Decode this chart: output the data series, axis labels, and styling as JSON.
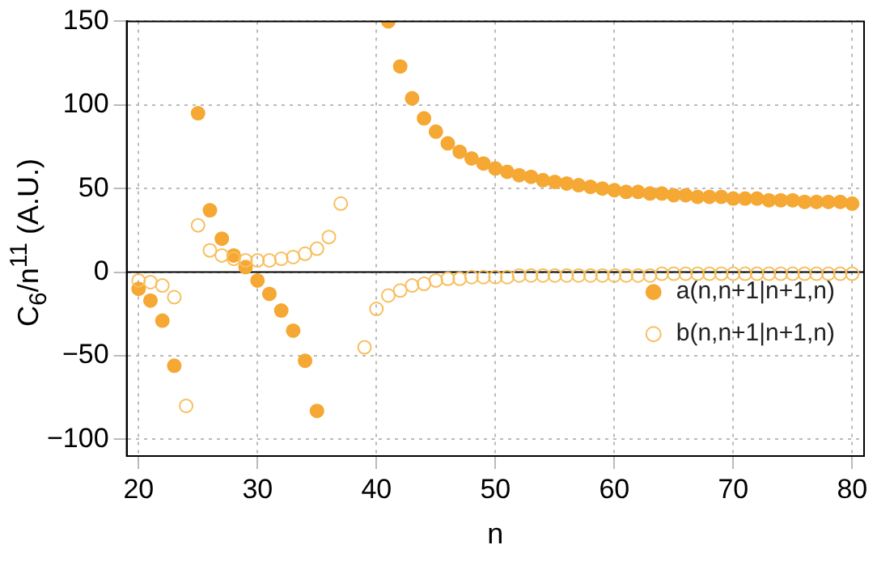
{
  "chart_data": {
    "type": "scatter",
    "xlabel": "n",
    "ylabel": "C$_{6}$/n$^{11}$ (A.U.)",
    "x": [
      20,
      21,
      22,
      23,
      24,
      25,
      26,
      27,
      28,
      29,
      30,
      31,
      32,
      33,
      34,
      35,
      36,
      37,
      38,
      39,
      40,
      41,
      42,
      43,
      44,
      45,
      46,
      47,
      48,
      49,
      50,
      51,
      52,
      53,
      54,
      55,
      56,
      57,
      58,
      59,
      60,
      61,
      62,
      63,
      64,
      65,
      66,
      67,
      68,
      69,
      70,
      71,
      72,
      73,
      74,
      75,
      76,
      77,
      78,
      79,
      80
    ],
    "series": [
      {
        "name": "a(n,n+1|n+1,n)",
        "color": "#f5a833",
        "values": [
          -10,
          -17,
          -29,
          -56,
          null,
          95,
          37,
          20,
          10,
          3,
          -5,
          -13,
          -23,
          -35,
          -53,
          -83,
          null,
          null,
          null,
          null,
          null,
          150,
          123,
          104,
          92,
          84,
          77,
          72,
          68,
          65,
          62,
          60,
          58,
          57,
          55,
          54,
          53,
          52,
          51,
          50,
          49,
          48,
          48,
          47,
          47,
          46,
          46,
          45,
          45,
          45,
          44,
          44,
          44,
          43,
          43,
          43,
          42,
          42,
          42,
          42,
          41
        ]
      },
      {
        "name": "b(n,n+1|n+1,n)",
        "color": "#f7bf5e",
        "values": [
          -5,
          -6,
          -8,
          -15,
          -80,
          28,
          13,
          10,
          8,
          7,
          7,
          7,
          8,
          9,
          11,
          14,
          21,
          41,
          null,
          -45,
          -22,
          -14,
          -11,
          -8,
          -7,
          -5,
          -4,
          -4,
          -3,
          -3,
          -3,
          -3,
          -2,
          -2,
          -2,
          -2,
          -2,
          -2,
          -2,
          -2,
          -2,
          -2,
          -2,
          -2,
          -1,
          -1,
          -1,
          -1,
          -1,
          -1,
          -1,
          -1,
          -1,
          -1,
          -1,
          -1,
          -1,
          -1,
          -1,
          -1,
          -1
        ]
      }
    ],
    "xlim": [
      19,
      81
    ],
    "xticks": [
      20,
      30,
      40,
      50,
      60,
      70,
      80
    ],
    "ylim": [
      -110,
      150
    ],
    "yticks": [
      -100,
      -50,
      0,
      50,
      100,
      150
    ],
    "ref_lines": [
      {
        "axis": "y",
        "value": 0,
        "color": "#000000"
      }
    ],
    "grid": true,
    "legend": "right",
    "marker": "circle"
  }
}
